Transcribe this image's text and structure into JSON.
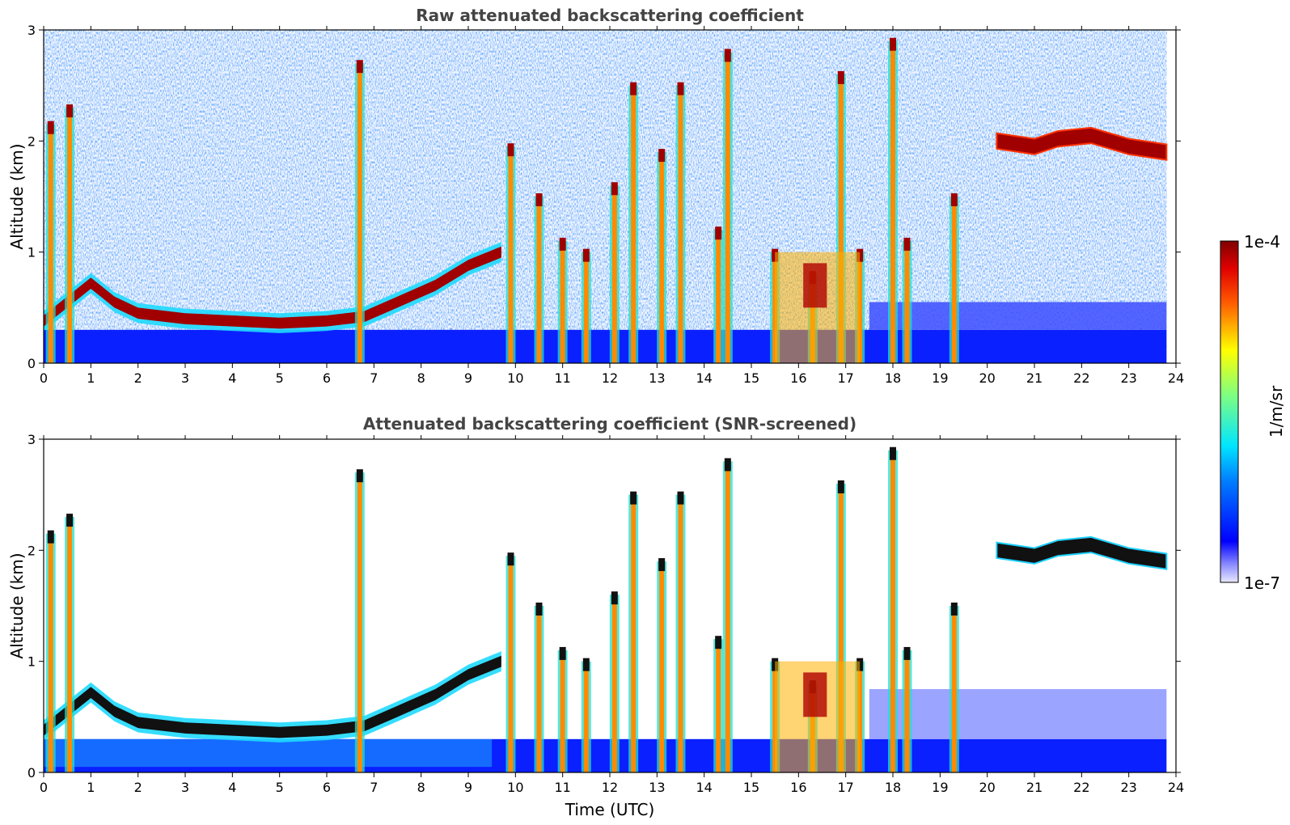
{
  "chart_data": [
    {
      "type": "heatmap",
      "title": "Raw attenuated backscattering coefficient",
      "xlabel": "",
      "ylabel": "Altitude (km)",
      "xlim": [
        0,
        24
      ],
      "ylim": [
        0,
        3
      ],
      "xticks": [
        "0",
        "1",
        "2",
        "3",
        "4",
        "5",
        "6",
        "7",
        "8",
        "9",
        "10",
        "11",
        "12",
        "13",
        "14",
        "15",
        "16",
        "17",
        "18",
        "19",
        "20",
        "21",
        "22",
        "23",
        "24"
      ],
      "yticks": [
        "0",
        "1",
        "2",
        "3"
      ],
      "data_coverage_end": 23.8,
      "features": {
        "boundary_layer": [
          [
            0,
            0.38
          ],
          [
            0.5,
            0.55
          ],
          [
            1,
            0.72
          ],
          [
            1.5,
            0.55
          ],
          [
            2,
            0.45
          ],
          [
            3,
            0.4
          ],
          [
            4,
            0.38
          ],
          [
            5,
            0.36
          ],
          [
            6,
            0.38
          ],
          [
            6.8,
            0.42
          ],
          [
            7.5,
            0.55
          ],
          [
            8.3,
            0.7
          ],
          [
            9,
            0.88
          ],
          [
            9.7,
            1.0
          ]
        ],
        "stratocumulus_layer": [
          [
            20.2,
            2.0
          ],
          [
            21,
            1.95
          ],
          [
            21.5,
            2.02
          ],
          [
            22.2,
            2.05
          ],
          [
            23,
            1.95
          ],
          [
            23.8,
            1.9
          ]
        ],
        "cloud_columns": [
          [
            0.15,
            2.15
          ],
          [
            0.55,
            2.3
          ],
          [
            6.7,
            2.7
          ],
          [
            9.9,
            1.95
          ],
          [
            10.5,
            1.5
          ],
          [
            11.0,
            1.1
          ],
          [
            11.5,
            1.0
          ],
          [
            12.1,
            1.6
          ],
          [
            12.5,
            2.5
          ],
          [
            13.1,
            1.9
          ],
          [
            13.5,
            2.5
          ],
          [
            14.3,
            1.2
          ],
          [
            14.5,
            2.8
          ],
          [
            15.5,
            1.0
          ],
          [
            16.3,
            0.8
          ],
          [
            16.9,
            2.6
          ],
          [
            17.3,
            1.0
          ],
          [
            18.0,
            2.9
          ],
          [
            18.3,
            1.1
          ],
          [
            19.3,
            1.5
          ]
        ]
      }
    },
    {
      "type": "heatmap",
      "title": "Attenuated backscattering coefficient (SNR-screened)",
      "xlabel": "Time (UTC)",
      "ylabel": "Altitude (km)",
      "xlim": [
        0,
        24
      ],
      "ylim": [
        0,
        3
      ],
      "xticks": [
        "0",
        "1",
        "2",
        "3",
        "4",
        "5",
        "6",
        "7",
        "8",
        "9",
        "10",
        "11",
        "12",
        "13",
        "14",
        "15",
        "16",
        "17",
        "18",
        "19",
        "20",
        "21",
        "22",
        "23",
        "24"
      ],
      "yticks": [
        "0",
        "1",
        "2",
        "3"
      ]
    }
  ],
  "colorbar": {
    "label": "1/m/sr",
    "max_label": "1e-4",
    "min_label": "1e-7",
    "min": 1e-07,
    "max": 0.0001,
    "scale": "log",
    "colormap": "jet"
  },
  "colors": {
    "title": "#444444",
    "text": "#000000",
    "clear_air": "#0019ff",
    "cloud": "#8a0000",
    "black_core": "#000000"
  }
}
